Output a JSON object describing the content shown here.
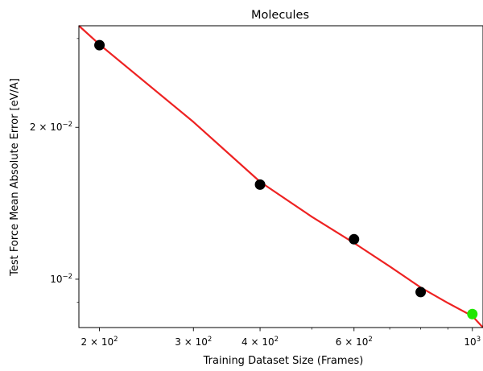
{
  "chart_data": {
    "type": "scatter",
    "title": "Molecules",
    "xlabel": "Training Dataset Size (Frames)",
    "ylabel": "Test Force Mean Absolute Error [eV/A]",
    "xscale": "log",
    "yscale": "log",
    "xlim": [
      183,
      1047
    ],
    "ylim": [
      0.00802,
      0.0318
    ],
    "grid": false,
    "x_ticks": [
      {
        "value": 200,
        "mantissa": "2",
        "base": "10",
        "exp": "2"
      },
      {
        "value": 300,
        "mantissa": "3",
        "base": "10",
        "exp": "2"
      },
      {
        "value": 400,
        "mantissa": "4",
        "base": "10",
        "exp": "2"
      },
      {
        "value": 600,
        "mantissa": "6",
        "base": "10",
        "exp": "2"
      },
      {
        "value": 1000,
        "mantissa": "",
        "base": "10",
        "exp": "3"
      }
    ],
    "x_minor_ticks": [
      500,
      700,
      800,
      900
    ],
    "y_ticks": [
      {
        "value": 0.02,
        "mantissa": "2",
        "base": "10",
        "exp": "−2"
      },
      {
        "value": 0.01,
        "mantissa": "",
        "base": "10",
        "exp": "−2"
      }
    ],
    "y_minor_ticks": [
      0.009,
      0.03
    ],
    "series": [
      {
        "kind": "points",
        "color": "#000000",
        "x": [
          200,
          400,
          600,
          800
        ],
        "y": [
          0.0291,
          0.0154,
          0.012,
          0.00943
        ]
      },
      {
        "kind": "points",
        "color": "#22e600",
        "x": [
          1000
        ],
        "y": [
          0.00853
        ]
      },
      {
        "kind": "line",
        "color": "#ee2222",
        "x": [
          183,
          200,
          300,
          400,
          500,
          600,
          700,
          800,
          900,
          1000,
          1047
        ],
        "y": [
          0.0318,
          0.0292,
          0.0205,
          0.0156,
          0.0133,
          0.0118,
          0.0106,
          0.00963,
          0.00897,
          0.00845,
          0.00802
        ]
      }
    ]
  }
}
